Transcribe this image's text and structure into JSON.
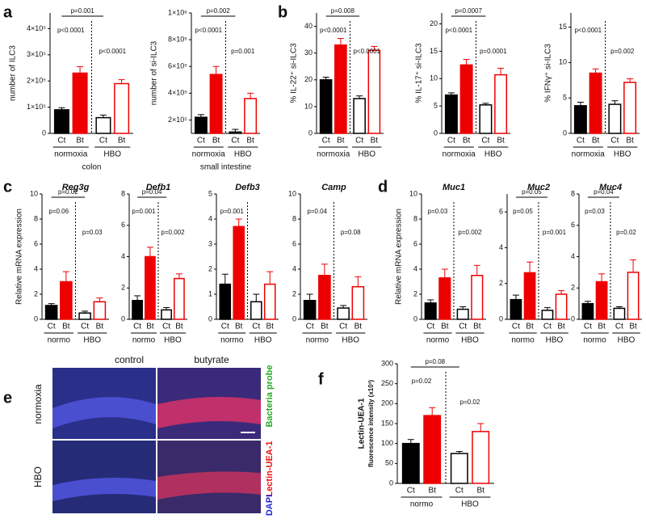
{
  "panel_letters": [
    "a",
    "b",
    "c",
    "d",
    "e",
    "f"
  ],
  "image_panel": {
    "columns": [
      "control",
      "butyrate"
    ],
    "rows": [
      "normoxia",
      "HBO"
    ],
    "stains": [
      "Bacteria probe",
      "Lectin-UEA-1",
      "DAPI"
    ]
  },
  "chart_data": [
    {
      "type": "bar",
      "ylabel": "number of ILC3",
      "xlabel": "colon",
      "categories": [
        "Ct",
        "Bt",
        "Ct",
        "Bt"
      ],
      "groups": [
        "normoxia",
        "HBO"
      ],
      "values": [
        90000,
        230000,
        60000,
        190000
      ],
      "errors": [
        8000,
        25000,
        10000,
        15000
      ],
      "ylim": [
        0,
        460000
      ],
      "yticks": [
        0,
        {
          "value": 100000,
          "label": "1×10⁵"
        },
        {
          "value": 200000,
          "label": "2×10⁵"
        },
        {
          "value": 300000,
          "label": "3×10⁵"
        },
        {
          "value": 400000,
          "label": "4×10⁵"
        }
      ],
      "p_ct": "p=0.001",
      "p_normoxia": "p<0.0001",
      "p_hbo": "p<0.0001"
    },
    {
      "type": "bar",
      "ylabel": "number of si-ILC3",
      "xlabel": "small intestine",
      "categories": [
        "Ct",
        "Bt",
        "Ct",
        "Bt"
      ],
      "groups": [
        "normoxia",
        "HBO"
      ],
      "values": [
        220000,
        540000,
        110000,
        360000
      ],
      "errors": [
        20000,
        60000,
        20000,
        40000
      ],
      "ylim": [
        100000,
        1000000
      ],
      "yticks": [
        {
          "value": 200000,
          "label": "2×10⁵"
        },
        {
          "value": 400000,
          "label": "4×10⁵"
        },
        {
          "value": 600000,
          "label": "6×10⁵"
        },
        {
          "value": 800000,
          "label": "8×10⁵"
        },
        {
          "value": 1000000,
          "label": "1×10⁶"
        }
      ],
      "p_ct": "p=0.002",
      "p_normoxia": "p<0.0001",
      "p_hbo": "p=0.001"
    },
    {
      "type": "bar",
      "ylabel": "% IL-22⁺ si-ILC3",
      "categories": [
        "Ct",
        "Bt",
        "Ct",
        "Bt"
      ],
      "groups": [
        "normoxia",
        "HBO"
      ],
      "values": [
        20,
        33,
        13,
        31
      ],
      "errors": [
        1,
        2.5,
        1,
        1.5
      ],
      "ylim": [
        0,
        45
      ],
      "yticks": [
        0,
        10,
        20,
        30,
        40
      ],
      "p_ct": "p=0.008",
      "p_normoxia": "p<0.0001",
      "p_hbo": "p<0.0001"
    },
    {
      "type": "bar",
      "ylabel": "% IL-17⁺ si-ILC3",
      "categories": [
        "Ct",
        "Bt",
        "Ct",
        "Bt"
      ],
      "groups": [
        "normoxia",
        "HBO"
      ],
      "values": [
        7,
        12.5,
        5.2,
        10.7
      ],
      "errors": [
        0.4,
        1,
        0.3,
        1.2
      ],
      "ylim": [
        0,
        22
      ],
      "yticks": [
        0,
        5,
        10,
        15,
        20
      ],
      "p_ct": "p=0.0007",
      "p_normoxia": "p<0.0001",
      "p_hbo": "p=0.0001"
    },
    {
      "type": "bar",
      "ylabel": "% IFNγ⁺ si-ILC3",
      "categories": [
        "Ct",
        "Bt",
        "Ct",
        "Bt"
      ],
      "groups": [
        "normoxia",
        "HBO"
      ],
      "values": [
        3.9,
        8.5,
        4.1,
        7.2
      ],
      "errors": [
        0.5,
        0.6,
        0.5,
        0.5
      ],
      "ylim": [
        0,
        17
      ],
      "yticks": [
        0,
        5,
        10,
        15
      ],
      "p_normoxia": "p<0.0001",
      "p_hbo": "p=0.002"
    },
    {
      "type": "bar",
      "title": "Reg3g",
      "ylabel": "Relative mRNA expression",
      "categories": [
        "Ct",
        "Bt",
        "Ct",
        "Bt"
      ],
      "groups": [
        "normo",
        "HBO"
      ],
      "values": [
        1.1,
        3.0,
        0.5,
        1.4
      ],
      "errors": [
        0.15,
        0.8,
        0.15,
        0.3
      ],
      "ylim": [
        0,
        10
      ],
      "yticks": [
        0,
        2,
        4,
        6,
        8,
        10
      ],
      "p_ct": "p=0.02",
      "p_normoxia": "p=0.06",
      "p_hbo": "p=0.03"
    },
    {
      "type": "bar",
      "title": "Defb1",
      "categories": [
        "Ct",
        "Bt",
        "Ct",
        "Bt"
      ],
      "groups": [
        "normo",
        "HBO"
      ],
      "values": [
        1.2,
        4.0,
        0.6,
        2.6
      ],
      "errors": [
        0.3,
        0.6,
        0.15,
        0.3
      ],
      "ylim": [
        0,
        8
      ],
      "yticks": [
        0,
        2,
        4,
        6,
        8
      ],
      "p_ct": "p=0.04",
      "p_normoxia": "p=0.001",
      "p_hbo": "p=0.002"
    },
    {
      "type": "bar",
      "title": "Defb3",
      "categories": [
        "Ct",
        "Bt",
        "Ct",
        "Bt"
      ],
      "groups": [
        "normo",
        "HBO"
      ],
      "values": [
        1.4,
        3.7,
        0.7,
        1.4
      ],
      "errors": [
        0.4,
        0.3,
        0.3,
        0.5
      ],
      "ylim": [
        0,
        5
      ],
      "yticks": [
        0,
        1,
        2,
        3,
        4,
        5
      ],
      "p_normoxia": "p=0.001"
    },
    {
      "type": "bar",
      "title": "Camp",
      "categories": [
        "Ct",
        "Bt",
        "Ct",
        "Bt"
      ],
      "groups": [
        "normo",
        "HBO"
      ],
      "values": [
        1.5,
        3.5,
        0.9,
        2.6
      ],
      "errors": [
        0.5,
        0.9,
        0.2,
        0.8
      ],
      "ylim": [
        0,
        10
      ],
      "yticks": [
        0,
        2,
        4,
        6,
        8,
        10
      ],
      "p_normoxia": "p=0.04",
      "p_hbo": "p=0.08"
    },
    {
      "type": "bar",
      "title": "Muc1",
      "ylabel": "Relative mRNA expression",
      "categories": [
        "Ct",
        "Bt",
        "Ct",
        "Bt"
      ],
      "groups": [
        "normo",
        "HBO"
      ],
      "values": [
        1.3,
        3.3,
        0.8,
        3.5
      ],
      "errors": [
        0.25,
        0.7,
        0.2,
        0.8
      ],
      "ylim": [
        0,
        10
      ],
      "yticks": [
        0,
        2,
        4,
        6,
        8,
        10
      ],
      "p_normoxia": "p=0.03",
      "p_hbo": "p=0.002"
    },
    {
      "type": "bar",
      "title": "Muc2",
      "categories": [
        "Ct",
        "Bt",
        "Ct",
        "Bt"
      ],
      "groups": [
        "normo",
        "HBO"
      ],
      "values": [
        1.1,
        2.6,
        0.5,
        1.4
      ],
      "errors": [
        0.25,
        0.6,
        0.15,
        0.2
      ],
      "ylim": [
        0,
        7
      ],
      "yticks": [
        0,
        2,
        4,
        6
      ],
      "p_ct": "p=0.05",
      "p_normoxia": "p=0.05",
      "p_hbo": "p=0.001"
    },
    {
      "type": "bar",
      "title": "Muc4",
      "categories": [
        "Ct",
        "Bt",
        "Ct",
        "Bt"
      ],
      "groups": [
        "normo",
        "HBO"
      ],
      "values": [
        1.0,
        2.4,
        0.7,
        3.0
      ],
      "errors": [
        0.15,
        0.5,
        0.1,
        0.8
      ],
      "ylim": [
        0,
        8
      ],
      "yticks": [
        0,
        2,
        4,
        6,
        8
      ],
      "p_ct": "p=0.04",
      "p_normoxia": "p=0.03",
      "p_hbo": "p=0.02"
    },
    {
      "type": "bar",
      "ylabel": "Lectin-UEA-1",
      "ylabel2": "fluorescence intensity (x10³)",
      "categories": [
        "Ct",
        "Bt",
        "Ct",
        "Bt"
      ],
      "groups": [
        "normo",
        "HBO"
      ],
      "values": [
        100,
        170,
        75,
        130
      ],
      "errors": [
        10,
        20,
        5,
        20
      ],
      "ylim": [
        0,
        300
      ],
      "yticks": [
        0,
        50,
        100,
        150,
        200,
        250,
        300
      ],
      "p_ct": "p=0.08",
      "p_normoxia": "p=0.02",
      "p_hbo": "p=0.02"
    }
  ],
  "bar_fills": [
    "#000000",
    "#ee0000",
    "#ffffff",
    "#ffffff"
  ],
  "bar_edges": [
    "#000000",
    "#ee0000",
    "#000000",
    "#ee0000"
  ]
}
